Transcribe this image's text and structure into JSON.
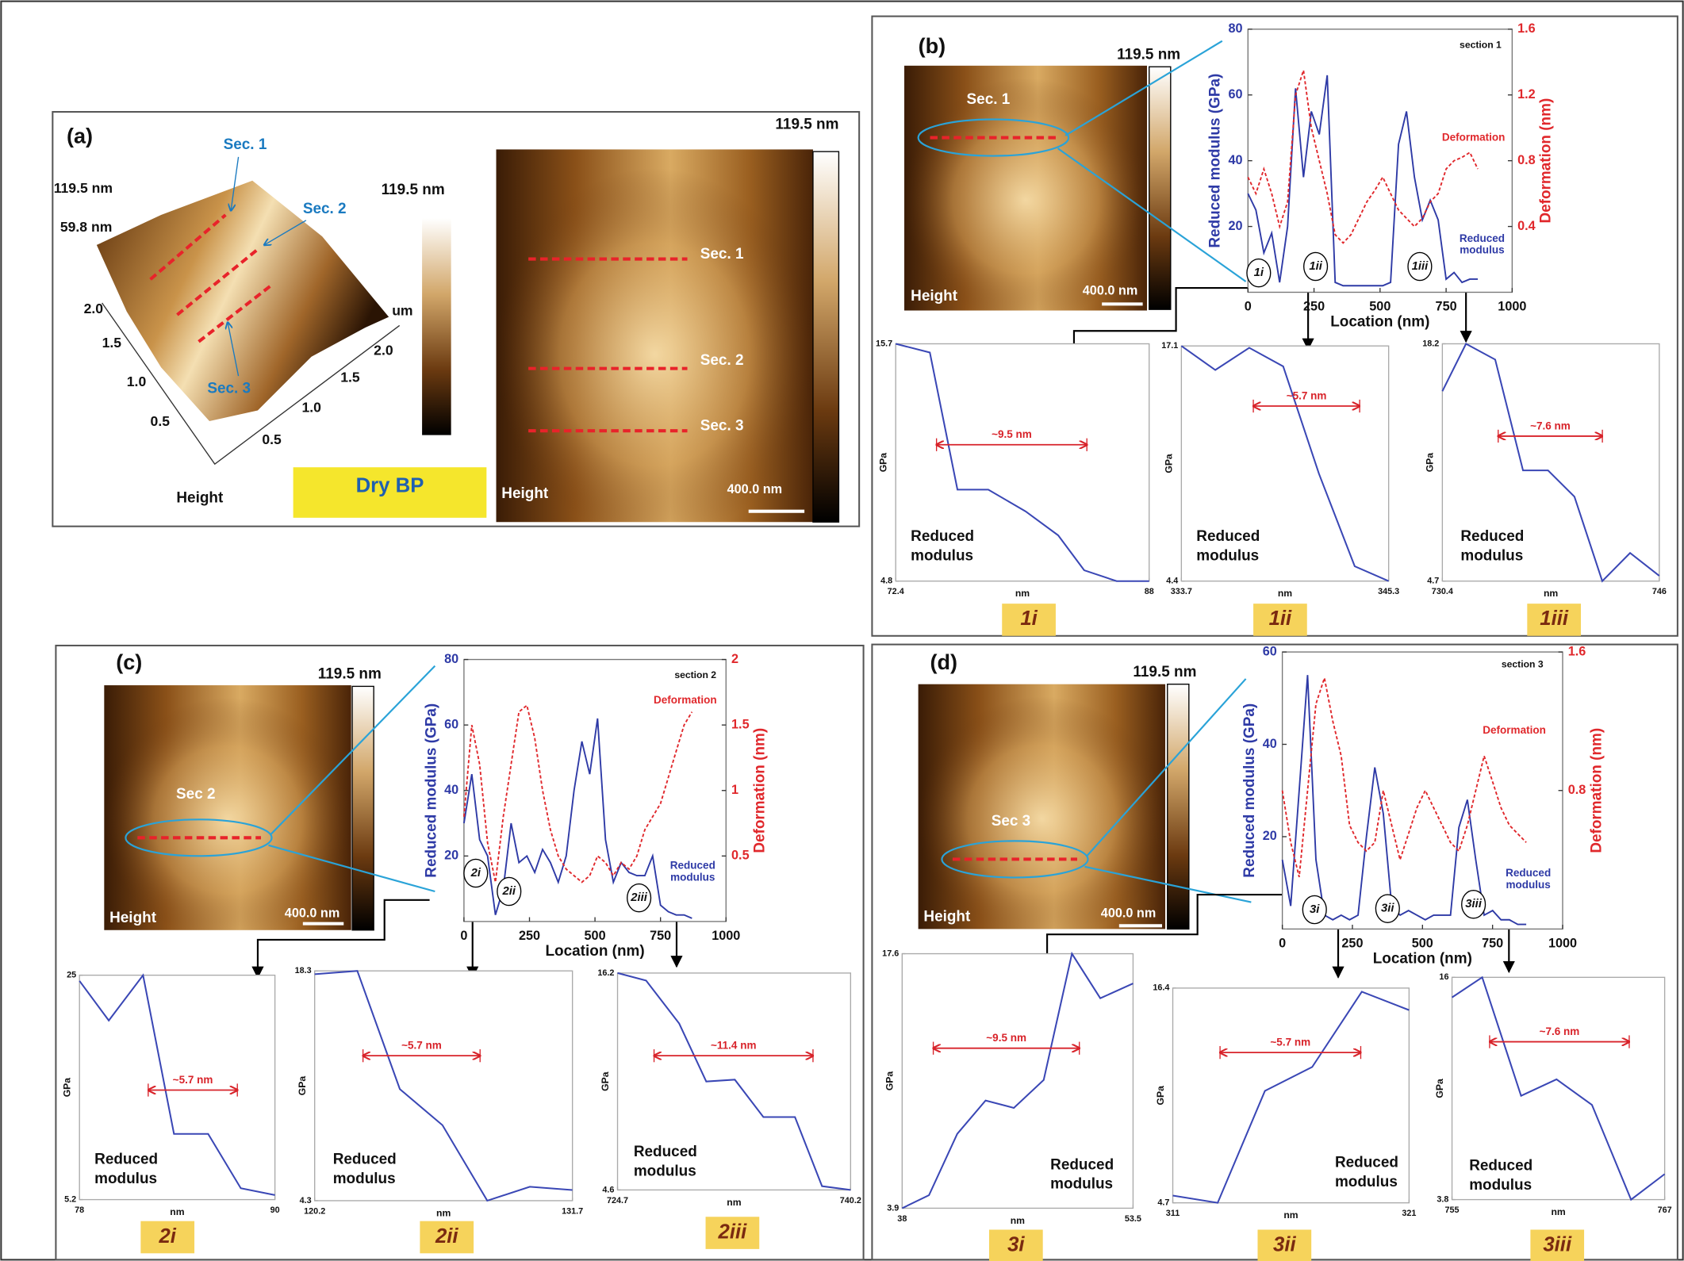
{
  "panels": {
    "a": {
      "label": "(a)",
      "surface": {
        "z_max": "119.5 nm",
        "z_mid": "59.8 nm",
        "sections": [
          "Sec. 1",
          "Sec. 2",
          "Sec. 3"
        ],
        "colorbar": "119.5 nm",
        "unit": "um",
        "axis_left": [
          "2.0",
          "1.5",
          "1.0",
          "0.5"
        ],
        "axis_right": [
          "0.5",
          "1.0",
          "1.5",
          "2.0"
        ],
        "caption": "Height"
      },
      "badge": "Dry BP",
      "image": {
        "scale": "119.5 nm",
        "sections": [
          "Sec. 1",
          "Sec. 2",
          "Sec. 3"
        ],
        "caption": "Height",
        "scalebar": "400.0 nm"
      }
    },
    "b": {
      "label": "(b)",
      "image": {
        "scale": "119.5 nm",
        "section": "Sec. 1",
        "caption": "Height",
        "scalebar": "400.0 nm"
      }
    },
    "c": {
      "label": "(c)",
      "image": {
        "scale": "119.5 nm",
        "section": "Sec  2",
        "caption": "Height",
        "scalebar": "400.0 nm"
      }
    },
    "d": {
      "label": "(d)",
      "image": {
        "scale": "119.5 nm",
        "section": "Sec  3",
        "caption": "Height",
        "scalebar": "400.0 nm"
      }
    }
  },
  "chart_data": [
    {
      "type": "dual",
      "title": "section 1",
      "xlabel": "Location (nm)",
      "ylabel": "Reduced modulus (GPa)",
      "y2label": "Deformation (nm)",
      "x": [
        0,
        30,
        60,
        90,
        120,
        150,
        180,
        210,
        240,
        270,
        300,
        330,
        360,
        390,
        420,
        450,
        480,
        510,
        540,
        570,
        600,
        630,
        660,
        690,
        720,
        750,
        780,
        810,
        840,
        870
      ],
      "series": [
        {
          "name": "Reduced modulus",
          "color": "#2e3aa6",
          "values": [
            30,
            25,
            12,
            18,
            3,
            20,
            62,
            35,
            55,
            48,
            66,
            3,
            2,
            2,
            2,
            2,
            2,
            2,
            3,
            45,
            55,
            35,
            22,
            28,
            22,
            4,
            6,
            3,
            4,
            4
          ]
        },
        {
          "name": "Deformation",
          "color": "#e0282c",
          "axis": "y2",
          "values": [
            0.7,
            0.6,
            0.75,
            0.6,
            0.4,
            0.55,
            1.2,
            1.35,
            1.0,
            0.8,
            0.6,
            0.35,
            0.3,
            0.35,
            0.45,
            0.55,
            0.62,
            0.7,
            0.6,
            0.5,
            0.45,
            0.4,
            0.45,
            0.55,
            0.6,
            0.75,
            0.8,
            0.82,
            0.85,
            0.75
          ]
        }
      ],
      "xlim": [
        0,
        1000
      ],
      "xticks": [
        0,
        250,
        500,
        750,
        1000
      ],
      "ylim": [
        0,
        80
      ],
      "yticks": [
        20,
        40,
        60,
        80
      ],
      "y2lim": [
        0,
        1.6
      ],
      "y2ticks": [
        0.4,
        0.8,
        1.2,
        1.6
      ]
    },
    {
      "type": "dual",
      "title": "section 2",
      "xlabel": "Location (nm)",
      "ylabel": "Reduced modulus (GPa)",
      "y2label": "Deformation (nm)",
      "x": [
        0,
        30,
        60,
        90,
        120,
        150,
        180,
        210,
        240,
        270,
        300,
        330,
        360,
        390,
        420,
        450,
        480,
        510,
        540,
        570,
        600,
        630,
        660,
        690,
        720,
        750,
        780,
        810,
        840,
        870
      ],
      "series": [
        {
          "name": "Reduced modulus",
          "color": "#2e3aa6",
          "values": [
            30,
            45,
            25,
            20,
            2,
            10,
            30,
            18,
            20,
            15,
            22,
            18,
            12,
            20,
            40,
            55,
            45,
            62,
            25,
            12,
            18,
            15,
            14,
            14,
            20,
            5,
            3,
            2,
            2,
            1
          ]
        },
        {
          "name": "Deformation",
          "color": "#e0282c",
          "axis": "y2",
          "values": [
            0.8,
            1.5,
            1.2,
            0.6,
            0.3,
            0.8,
            1.2,
            1.6,
            1.65,
            1.4,
            1.0,
            0.7,
            0.5,
            0.4,
            0.35,
            0.3,
            0.35,
            0.5,
            0.45,
            0.35,
            0.45,
            0.4,
            0.5,
            0.7,
            0.8,
            0.9,
            1.1,
            1.3,
            1.5,
            1.6
          ]
        }
      ],
      "xlim": [
        0,
        1000
      ],
      "xticks": [
        0,
        250,
        500,
        750,
        1000
      ],
      "ylim": [
        0,
        80
      ],
      "yticks": [
        20,
        40,
        60,
        80
      ],
      "y2lim": [
        0,
        2
      ],
      "y2ticks": [
        0.5,
        1,
        1.5,
        2
      ]
    },
    {
      "type": "dual",
      "title": "section 3",
      "xlabel": "Location (nm)",
      "ylabel": "Reduced modulus (GPa)",
      "y2label": "Deformation (nm)",
      "x": [
        0,
        30,
        60,
        90,
        120,
        150,
        180,
        210,
        240,
        270,
        300,
        330,
        360,
        390,
        420,
        450,
        480,
        510,
        540,
        570,
        600,
        630,
        660,
        690,
        720,
        750,
        780,
        810,
        840,
        870
      ],
      "series": [
        {
          "name": "Reduced modulus",
          "color": "#2e3aa6",
          "values": [
            15,
            5,
            30,
            55,
            15,
            3,
            2,
            3,
            2,
            3,
            20,
            35,
            25,
            5,
            3,
            4,
            3,
            2,
            3,
            3,
            3,
            22,
            28,
            15,
            3,
            4,
            2,
            2,
            1,
            1
          ]
        },
        {
          "name": "Deformation",
          "color": "#e0282c",
          "axis": "y2",
          "values": [
            0.8,
            0.5,
            0.3,
            0.8,
            1.3,
            1.45,
            1.2,
            1.0,
            0.6,
            0.5,
            0.45,
            0.5,
            0.8,
            0.6,
            0.4,
            0.55,
            0.7,
            0.8,
            0.7,
            0.6,
            0.5,
            0.45,
            0.6,
            0.8,
            1.0,
            0.85,
            0.7,
            0.6,
            0.55,
            0.5
          ]
        }
      ],
      "xlim": [
        0,
        1000
      ],
      "xticks": [
        0,
        250,
        500,
        750,
        1000
      ],
      "ylim": [
        0,
        60
      ],
      "yticks": [
        20,
        40,
        60
      ],
      "y2lim": [
        0,
        1.6
      ],
      "y2ticks": [
        0.8,
        1.6
      ]
    },
    {
      "type": "line",
      "title": "1i",
      "xlabel": "nm",
      "ylabel": "GPa",
      "annotation": "~9.5 nm",
      "label": "Reduced modulus",
      "color": "#3a47b5",
      "x": [
        72.4,
        74.5,
        76.2,
        78.1,
        80.4,
        82.4,
        84.0,
        86.0,
        88.0
      ],
      "values": [
        15.7,
        15.3,
        9.0,
        9.0,
        8.0,
        6.9,
        5.3,
        4.8,
        4.8
      ],
      "xlim": [
        72.4,
        88
      ],
      "xticks": [
        72.4,
        88
      ],
      "ylim": [
        4.8,
        15.7
      ],
      "yticks": [
        4.8,
        15.7
      ]
    },
    {
      "type": "line",
      "title": "1ii",
      "xlabel": "nm",
      "ylabel": "GPa",
      "annotation": "~5.7 nm",
      "label": "Reduced modulus",
      "color": "#3a47b5",
      "x": [
        333.7,
        335.6,
        337.5,
        339.4,
        341.4,
        343.4,
        345.3
      ],
      "values": [
        17.1,
        15.8,
        17.0,
        16.0,
        10.2,
        5.2,
        4.4
      ],
      "xlim": [
        333.7,
        345.3
      ],
      "xticks": [
        333.7,
        345.3
      ],
      "ylim": [
        4.4,
        17.1
      ],
      "yticks": [
        4.4,
        17.1
      ]
    },
    {
      "type": "line",
      "title": "1iii",
      "xlabel": "nm",
      "ylabel": "GPa",
      "annotation": "~7.6 nm",
      "label": "Reduced modulus",
      "color": "#3a47b5",
      "x": [
        730.4,
        732.1,
        734.2,
        736.2,
        738.0,
        739.9,
        741.9,
        743.9,
        746.0
      ],
      "values": [
        15.5,
        18.2,
        17.3,
        11.0,
        11.0,
        9.5,
        4.7,
        6.3,
        5.0
      ],
      "xlim": [
        730.4,
        746
      ],
      "xticks": [
        730.4,
        746
      ],
      "ylim": [
        4.7,
        18.2
      ],
      "yticks": [
        4.7,
        18.2
      ]
    },
    {
      "type": "line",
      "title": "2i",
      "xlabel": "nm",
      "ylabel": "GPa",
      "annotation": "~5.7 nm",
      "label": "Reduced modulus",
      "color": "#3a47b5",
      "x": [
        78,
        79.8,
        81.9,
        83.8,
        85.9,
        87.9,
        90
      ],
      "values": [
        24.5,
        21,
        25,
        11,
        11,
        6.2,
        5.6
      ],
      "xlim": [
        78,
        90
      ],
      "xticks": [
        78,
        90
      ],
      "ylim": [
        5.2,
        25
      ],
      "yticks": [
        5.2,
        25
      ]
    },
    {
      "type": "line",
      "title": "2ii",
      "xlabel": "nm",
      "ylabel": "GPa",
      "annotation": "~5.7 nm",
      "label": "Reduced modulus",
      "color": "#3a47b5",
      "x": [
        120.2,
        122.1,
        124.0,
        125.9,
        127.9,
        129.8,
        131.7
      ],
      "values": [
        18.1,
        18.3,
        11.1,
        8.9,
        4.3,
        5.15,
        4.95
      ],
      "xlim": [
        120.2,
        131.7
      ],
      "xticks": [
        120.2,
        131.7
      ],
      "ylim": [
        4.3,
        18.3
      ],
      "yticks": [
        4.3,
        18.3
      ]
    },
    {
      "type": "line",
      "title": "2iii",
      "xlabel": "nm",
      "ylabel": "GPa",
      "annotation": "~11.4 nm",
      "label": "Reduced modulus",
      "color": "#3a47b5",
      "x": [
        724.7,
        726.6,
        728.8,
        730.6,
        732.5,
        734.4,
        736.5,
        738.3,
        740.2
      ],
      "values": [
        16.2,
        15.8,
        13.5,
        10.4,
        10.5,
        8.5,
        8.5,
        4.8,
        4.6
      ],
      "xlim": [
        724.7,
        740.2
      ],
      "xticks": [
        724.7,
        740.2
      ],
      "ylim": [
        4.6,
        16.2
      ],
      "yticks": [
        4.6,
        16.2
      ]
    },
    {
      "type": "line",
      "title": "3i",
      "xlabel": "nm",
      "ylabel": "GPa",
      "annotation": "~9.5 nm",
      "label": "Reduced modulus",
      "color": "#3a47b5",
      "x": [
        38,
        39.8,
        41.7,
        43.6,
        45.5,
        47.5,
        49.4,
        51.3,
        53.5
      ],
      "values": [
        3.9,
        4.6,
        7.9,
        9.7,
        9.3,
        10.8,
        17.6,
        15.2,
        16.0
      ],
      "xlim": [
        38,
        53.5
      ],
      "xticks": [
        38,
        53.5
      ],
      "ylim": [
        3.9,
        17.6
      ],
      "yticks": [
        3.9,
        17.6
      ]
    },
    {
      "type": "line",
      "title": "3ii",
      "xlabel": "nm",
      "ylabel": "GPa",
      "annotation": "~5.7 nm",
      "label": "Reduced modulus",
      "color": "#3a47b5",
      "x": [
        311,
        312.9,
        314.9,
        316.9,
        319.0,
        321
      ],
      "values": [
        5.1,
        4.7,
        10.8,
        12.1,
        16.2,
        15.2
      ],
      "xlim": [
        311,
        321
      ],
      "xticks": [
        311,
        321
      ],
      "ylim": [
        4.7,
        16.4
      ],
      "yticks": [
        4.7,
        16.4
      ]
    },
    {
      "type": "line",
      "title": "3iii",
      "xlabel": "nm",
      "ylabel": "GPa",
      "annotation": "~7.6 nm",
      "label": "Reduced modulus",
      "color": "#3a47b5",
      "x": [
        755,
        756.7,
        758.9,
        760.9,
        762.9,
        765.1,
        767
      ],
      "values": [
        14.9,
        16,
        9.5,
        10.4,
        9.0,
        3.8,
        5.2
      ],
      "xlim": [
        755,
        767
      ],
      "xticks": [
        755,
        767
      ],
      "ylim": [
        3.8,
        16
      ],
      "yticks": [
        3.8,
        16
      ]
    }
  ]
}
